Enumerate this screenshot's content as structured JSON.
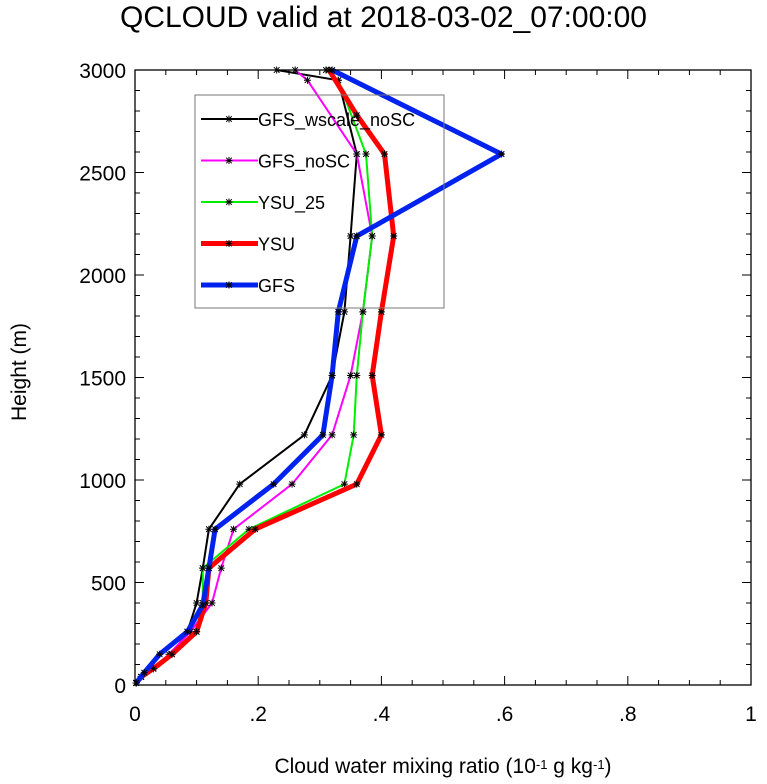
{
  "chart_data": {
    "type": "line",
    "title": "QCLOUD valid at 2018-03-02_07:00:00",
    "xlabel": {
      "prefix": "Cloud water mixing ratio (10",
      "exp1": "-1",
      "mid": " g kg",
      "exp2": "-1",
      "suffix": ")"
    },
    "ylabel": "Height (m)",
    "xlim": [
      0,
      1
    ],
    "ylim": [
      0,
      3000
    ],
    "x_ticks": [
      0,
      0.2,
      0.4,
      0.6,
      0.8,
      1
    ],
    "x_tick_labels": [
      "0",
      ".2",
      ".4",
      ".6",
      ".8",
      "1"
    ],
    "y_ticks": [
      0,
      500,
      1000,
      1500,
      2000,
      2500,
      3000
    ],
    "y_tick_labels": [
      "0",
      "500",
      "1000",
      "1500",
      "2000",
      "2500",
      "3000"
    ],
    "grid": false,
    "legend_position": "top-left",
    "series": [
      {
        "name": "GFS_wscale_noSC",
        "color": "#000000",
        "width": 2,
        "x": [
          0.002,
          0.01,
          0.03,
          0.06,
          0.085,
          0.1,
          0.11,
          0.12,
          0.17,
          0.275,
          0.32,
          0.34,
          0.35,
          0.36,
          0.33,
          0.23
        ],
        "y": [
          10,
          40,
          80,
          150,
          260,
          400,
          570,
          760,
          980,
          1220,
          1510,
          1820,
          2190,
          2590,
          2950,
          3000
        ]
      },
      {
        "name": "GFS_noSC",
        "color": "#ff00ff",
        "width": 2,
        "x": [
          0.002,
          0.01,
          0.03,
          0.055,
          0.09,
          0.125,
          0.14,
          0.16,
          0.255,
          0.32,
          0.35,
          0.37,
          0.385,
          0.36,
          0.28,
          0.26
        ],
        "y": [
          10,
          40,
          80,
          150,
          260,
          400,
          570,
          760,
          980,
          1220,
          1510,
          1820,
          2190,
          2590,
          2950,
          3000
        ]
      },
      {
        "name": "YSU_25",
        "color": "#00ee00",
        "width": 2,
        "x": [
          0.002,
          0.01,
          0.03,
          0.06,
          0.1,
          0.11,
          0.11,
          0.185,
          0.34,
          0.355,
          0.36,
          0.37,
          0.385,
          0.375,
          0.33,
          0.31
        ],
        "y": [
          10,
          40,
          80,
          150,
          260,
          400,
          570,
          760,
          980,
          1220,
          1510,
          1820,
          2190,
          2590,
          2950,
          3000
        ]
      },
      {
        "name": "YSU",
        "color": "#ff0000",
        "width": 5,
        "x": [
          0.002,
          0.01,
          0.03,
          0.06,
          0.1,
          0.115,
          0.12,
          0.195,
          0.36,
          0.4,
          0.385,
          0.4,
          0.42,
          0.405,
          0.36,
          0.315
        ],
        "y": [
          10,
          40,
          80,
          150,
          260,
          400,
          570,
          760,
          980,
          1220,
          1510,
          1820,
          2190,
          2590,
          2780,
          3000
        ]
      },
      {
        "name": "GFS",
        "color": "#0022ee",
        "width": 5,
        "x": [
          0.002,
          0.015,
          0.04,
          0.085,
          0.11,
          0.12,
          0.13,
          0.225,
          0.305,
          0.32,
          0.33,
          0.36,
          0.595,
          0.32
        ],
        "y": [
          10,
          60,
          150,
          260,
          390,
          570,
          760,
          980,
          1220,
          1510,
          1820,
          2190,
          2590,
          3000
        ]
      }
    ]
  }
}
